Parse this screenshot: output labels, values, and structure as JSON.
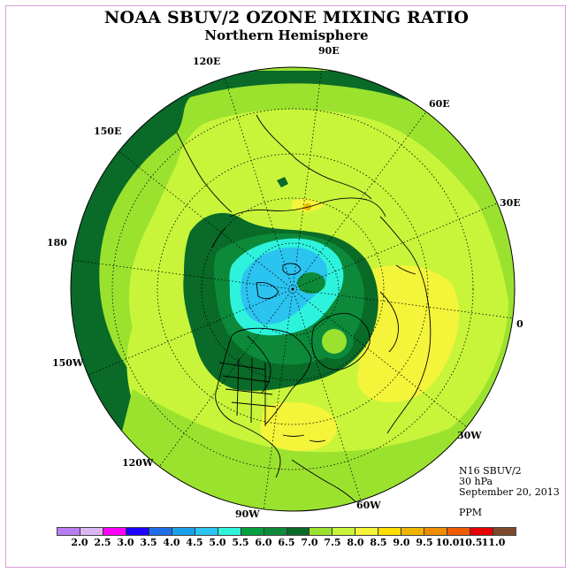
{
  "title": "NOAA SBUV/2 OZONE MIXING RATIO",
  "subtitle": "Northern Hemisphere",
  "info": {
    "satellite": "N16 SBUV/2",
    "level": "30 hPa",
    "date": "September 20, 2013",
    "units": "PPM"
  },
  "longitude_labels": {
    "lon_90E": "90E",
    "lon_60E": "60E",
    "lon_30E": "30E",
    "lon_0": "0",
    "lon_30W": "30W",
    "lon_60W": "60W",
    "lon_90W": "90W",
    "lon_120W": "120W",
    "lon_150W": "150W",
    "lon_180": "180",
    "lon_150E": "150E",
    "lon_120E": "120E"
  },
  "colorbar": {
    "colors": [
      "#b67cf2",
      "#dcb5f3",
      "#ff00ff",
      "#1e00ff",
      "#1f6fe8",
      "#19a0ec",
      "#2bc3f0",
      "#2ef3dc",
      "#00a040",
      "#0c8a3a",
      "#0a6a28",
      "#9be22f",
      "#c8f53a",
      "#f4f43a",
      "#ffdc00",
      "#f0b400",
      "#f08c00",
      "#f05a00",
      "#e60000",
      "#7b4a2d"
    ],
    "ticks": [
      "2.0",
      "2.5",
      "3.0",
      "3.5",
      "4.0",
      "4.5",
      "5.0",
      "5.5",
      "6.0",
      "6.5",
      "7.0",
      "7.5",
      "8.0",
      "8.5",
      "9.0",
      "9.5",
      "10.0",
      "10.5",
      "11.0"
    ]
  },
  "field_colors": {
    "dark_green": "#0a6a28",
    "mid_green": "#0c8a3a",
    "light_green": "#9be22f",
    "yellow_green": "#c8f53a",
    "yellow": "#f4f43a",
    "cyan": "#2ef3dc",
    "light_blue": "#2bc3f0",
    "orange": "#f0b400"
  }
}
